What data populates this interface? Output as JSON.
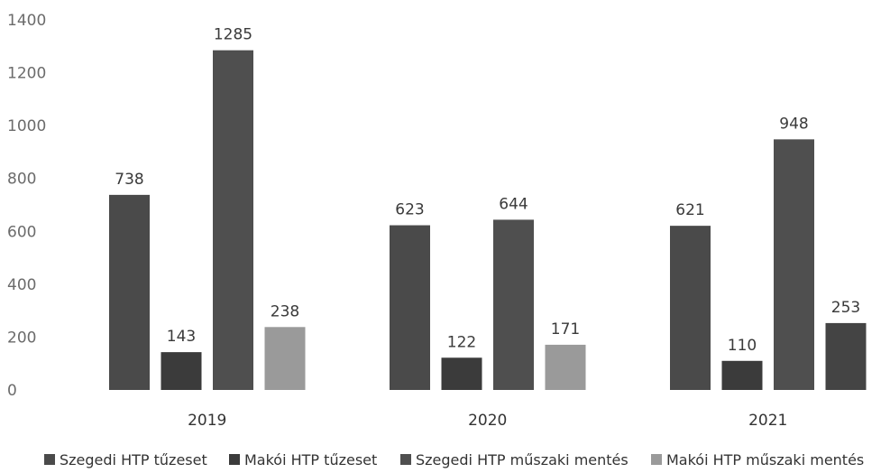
{
  "chart_data": {
    "type": "bar",
    "categories": [
      "2019",
      "2020",
      "2021"
    ],
    "series": [
      {
        "name": "Szegedi HTP tűzeset",
        "values": [
          738,
          623,
          621
        ],
        "color": "#4a4a4a"
      },
      {
        "name": "Makói HTP tűzeset",
        "values": [
          143,
          122,
          110
        ],
        "color": "#3b3b3b"
      },
      {
        "name": "Szegedi HTP műszaki mentés",
        "values": [
          1285,
          644,
          948
        ],
        "color": "#4f4f4f"
      },
      {
        "name": "Makói HTP műszaki mentés",
        "values": [
          238,
          171,
          253
        ],
        "color": "#9a9a9a"
      }
    ],
    "bar_colors_override": {
      "3-2": "#444444"
    },
    "yticks": [
      0,
      200,
      400,
      600,
      800,
      1000,
      1200,
      1400
    ],
    "ylim": [
      0,
      1400
    ],
    "grid": false,
    "legend_position": "bottom",
    "title": "",
    "xlabel": "",
    "ylabel": ""
  }
}
